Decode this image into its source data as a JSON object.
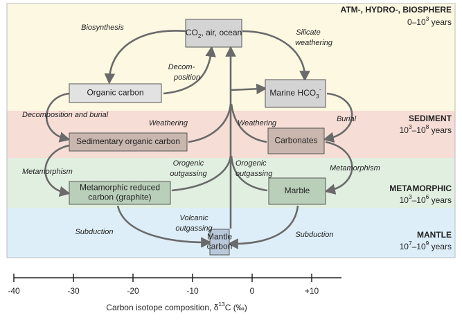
{
  "bands": [
    {
      "name": "ATM-, HYDRO-, BIOSPHERE",
      "age": [
        {
          "text": "0–10"
        },
        {
          "sup": "3"
        },
        {
          "text": " years"
        }
      ]
    },
    {
      "name": "SEDIMENT",
      "age": [
        {
          "text": "10"
        },
        {
          "sup": "3"
        },
        {
          "text": "–10"
        },
        {
          "sup": "8"
        },
        {
          "text": " years"
        }
      ]
    },
    {
      "name": "METAMORPHIC",
      "age": [
        {
          "text": "10"
        },
        {
          "sup": "3"
        },
        {
          "text": "–10"
        },
        {
          "sup": "6"
        },
        {
          "text": " years"
        }
      ]
    },
    {
      "name": "MANTLE",
      "age": [
        {
          "text": "10"
        },
        {
          "sup": "7"
        },
        {
          "text": "–10"
        },
        {
          "sup": "9"
        },
        {
          "text": " years"
        }
      ]
    }
  ],
  "nodes": [
    {
      "lines": [
        [
          {
            "text": "CO"
          },
          {
            "sub": "2"
          },
          {
            "text": ", air, ocean"
          }
        ]
      ]
    },
    {
      "lines": [
        [
          {
            "text": "Organic carbon"
          }
        ]
      ]
    },
    {
      "lines": [
        [
          {
            "text": "Marine HCO"
          },
          {
            "sub": "3"
          },
          {
            "sup": "-"
          }
        ]
      ]
    },
    {
      "lines": [
        [
          {
            "text": "Sedimentary organic carbon"
          }
        ]
      ]
    },
    {
      "lines": [
        [
          {
            "text": "Carbonates"
          }
        ]
      ]
    },
    {
      "lines": [
        [
          {
            "text": "Metamorphic reduced"
          }
        ],
        [
          {
            "text": "carbon (graphite)"
          }
        ]
      ]
    },
    {
      "lines": [
        [
          {
            "text": "Marble"
          }
        ]
      ]
    },
    {
      "lines": [
        [
          {
            "text": "Mantle"
          }
        ],
        [
          {
            "text": "carbon"
          }
        ]
      ]
    }
  ],
  "edge_labels": [
    [
      "Biosynthesis"
    ],
    [
      "Decom-",
      "position"
    ],
    [
      "Silicate",
      "weathering"
    ],
    [
      "Decomposition and burial"
    ],
    [
      "Weathering"
    ],
    [
      "Weathering"
    ],
    [
      "Burial"
    ],
    [
      "Metamorphism"
    ],
    [
      "Orogenic",
      "outgassing"
    ],
    [
      "Orogenic",
      "outgassing"
    ],
    [
      "Metamorphism"
    ],
    [
      "Volcanic",
      "outgassing"
    ],
    [
      "Subduction"
    ],
    [
      "Subduction"
    ]
  ],
  "axis": {
    "xlim": [
      -40,
      15
    ],
    "xticks": [
      -40,
      -30,
      -20,
      -10,
      0,
      {
        "value": 10,
        "label": "+10"
      }
    ],
    "label": [
      {
        "text": "Carbon isotope composition, δ"
      },
      {
        "sup": "13"
      },
      {
        "text": "C (‰)"
      }
    ]
  }
}
